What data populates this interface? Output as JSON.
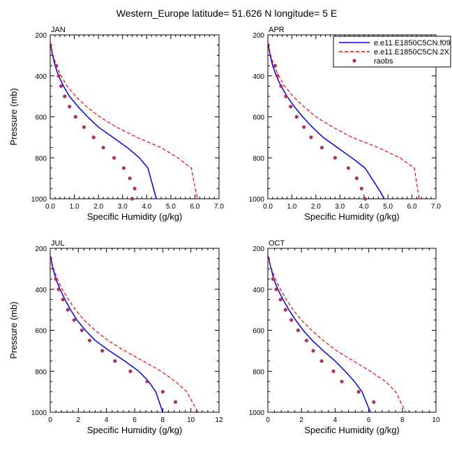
{
  "title": "Western_Europe  latitude= 51.626 N longitude= 5 E",
  "legend": {
    "placement": "top-right",
    "entries": [
      {
        "label": "e.e11.E1850C5CN.f09",
        "color": "#0000ff",
        "style": "solid"
      },
      {
        "label": "e.e11.E1850C5CN.2X",
        "color": "#ff0000",
        "style": "dashed"
      },
      {
        "label": "raobs",
        "color": "#b03060",
        "style": "marker"
      }
    ]
  },
  "chart_data": [
    {
      "type": "line",
      "panel": "JAN",
      "xlabel": "Specific Humidity (g/kg)",
      "ylabel": "Pressure (mb)",
      "xlim": [
        0,
        7
      ],
      "xticks": [
        0,
        1,
        2,
        3,
        4,
        5,
        6,
        7
      ],
      "xtick_labels": [
        "0.0",
        "1.0",
        "2.0",
        "3.0",
        "4.0",
        "5.0",
        "6.0",
        "7.0"
      ],
      "ylim": [
        200,
        1000
      ],
      "yreversed": true,
      "yticks": [
        200,
        400,
        600,
        800,
        1000
      ],
      "ytick_labels": [
        "200",
        "400",
        "600",
        "800",
        "1000"
      ],
      "grid": false,
      "series": [
        {
          "name": "e.e11.E1850C5CN.f09",
          "x": [
            0.02,
            0.05,
            0.1,
            0.2,
            0.35,
            0.55,
            0.8,
            1.15,
            1.55,
            2.0,
            2.6,
            3.2,
            3.7,
            4.05,
            4.4
          ],
          "y": [
            240,
            270,
            300,
            350,
            400,
            450,
            500,
            550,
            600,
            650,
            700,
            750,
            800,
            850,
            1000
          ]
        },
        {
          "name": "e.e11.E1850C5CN.2X",
          "x": [
            0.02,
            0.06,
            0.12,
            0.25,
            0.45,
            0.7,
            1.05,
            1.5,
            2.05,
            2.75,
            3.6,
            4.6,
            5.3,
            5.85,
            6.1
          ],
          "y": [
            240,
            270,
            300,
            350,
            400,
            450,
            500,
            550,
            600,
            650,
            700,
            750,
            800,
            850,
            1000
          ]
        },
        {
          "name": "raobs",
          "x": [
            0.25,
            0.35,
            0.45,
            0.6,
            0.8,
            1.05,
            1.4,
            1.8,
            2.2,
            2.65,
            3.05,
            3.3,
            3.5,
            3.4
          ],
          "y": [
            350,
            400,
            450,
            500,
            550,
            600,
            650,
            700,
            750,
            800,
            850,
            900,
            950,
            1000
          ]
        }
      ]
    },
    {
      "type": "line",
      "panel": "APR",
      "xlabel": "Specific Humidity (g/kg)",
      "ylabel": "",
      "xlim": [
        0,
        7
      ],
      "xticks": [
        0,
        1,
        2,
        3,
        4,
        5,
        6,
        7
      ],
      "xtick_labels": [
        "0.0",
        "1.0",
        "2.0",
        "3.0",
        "4.0",
        "5.0",
        "6.0",
        "7.0"
      ],
      "ylim": [
        200,
        1000
      ],
      "yreversed": true,
      "yticks": [
        200,
        400,
        600,
        800,
        1000
      ],
      "ytick_labels": [
        "200",
        "400",
        "600",
        "800",
        "1000"
      ],
      "grid": false,
      "series": [
        {
          "name": "e.e11.E1850C5CN.f09",
          "x": [
            0.02,
            0.05,
            0.1,
            0.2,
            0.35,
            0.55,
            0.8,
            1.1,
            1.45,
            1.85,
            2.3,
            2.9,
            3.5,
            4.05,
            4.6,
            4.85
          ],
          "y": [
            240,
            270,
            300,
            350,
            400,
            450,
            500,
            550,
            600,
            650,
            700,
            750,
            800,
            850,
            950,
            1000
          ]
        },
        {
          "name": "e.e11.E1850C5CN.2X",
          "x": [
            0.02,
            0.06,
            0.12,
            0.25,
            0.45,
            0.7,
            1.05,
            1.5,
            2.0,
            2.7,
            3.5,
            4.6,
            5.5,
            6.1,
            6.3
          ],
          "y": [
            240,
            270,
            300,
            350,
            400,
            450,
            500,
            550,
            600,
            650,
            700,
            750,
            800,
            850,
            1000
          ]
        },
        {
          "name": "raobs",
          "x": [
            0.3,
            0.4,
            0.55,
            0.75,
            0.95,
            1.2,
            1.5,
            1.8,
            2.25,
            2.8,
            3.35,
            3.7,
            3.9,
            4.05
          ],
          "y": [
            350,
            400,
            450,
            500,
            550,
            600,
            650,
            700,
            750,
            800,
            850,
            900,
            950,
            1000
          ]
        }
      ]
    },
    {
      "type": "line",
      "panel": "JUL",
      "xlabel": "Specific Humidity (g/kg)",
      "ylabel": "Pressure (mb)",
      "xlim": [
        0,
        12
      ],
      "xticks": [
        0,
        2,
        4,
        6,
        8,
        10,
        12
      ],
      "xtick_labels": [
        "0",
        "2",
        "4",
        "6",
        "8",
        "10",
        "12"
      ],
      "ylim": [
        200,
        1000
      ],
      "yreversed": true,
      "yticks": [
        200,
        400,
        600,
        800,
        1000
      ],
      "ytick_labels": [
        "200",
        "400",
        "600",
        "800",
        "1000"
      ],
      "grid": false,
      "series": [
        {
          "name": "e.e11.E1850C5CN.f09",
          "x": [
            0.05,
            0.1,
            0.2,
            0.4,
            0.7,
            1.05,
            1.45,
            1.9,
            2.5,
            3.2,
            4.2,
            5.3,
            6.3,
            7.0,
            7.5,
            8.0
          ],
          "y": [
            240,
            270,
            300,
            350,
            400,
            450,
            500,
            550,
            600,
            650,
            700,
            750,
            800,
            850,
            900,
            1000
          ]
        },
        {
          "name": "e.e11.E1850C5CN.2X",
          "x": [
            0.05,
            0.12,
            0.25,
            0.5,
            0.85,
            1.3,
            1.8,
            2.4,
            3.2,
            4.1,
            5.3,
            6.6,
            7.9,
            8.9,
            9.7,
            10.5
          ],
          "y": [
            240,
            270,
            300,
            350,
            400,
            450,
            500,
            550,
            600,
            650,
            700,
            750,
            800,
            850,
            900,
            1000
          ]
        },
        {
          "name": "raobs",
          "x": [
            0.4,
            0.6,
            0.9,
            1.25,
            1.7,
            2.25,
            2.8,
            3.7,
            4.6,
            5.7,
            6.9,
            8.0,
            8.9
          ],
          "y": [
            350,
            400,
            450,
            500,
            550,
            600,
            650,
            700,
            750,
            800,
            850,
            900,
            950
          ]
        }
      ]
    },
    {
      "type": "line",
      "panel": "OCT",
      "xlabel": "Specific Humidity (g/kg)",
      "ylabel": "",
      "xlim": [
        0,
        10
      ],
      "xticks": [
        0,
        2,
        4,
        6,
        8,
        10
      ],
      "xtick_labels": [
        "0",
        "2",
        "4",
        "6",
        "8",
        "10"
      ],
      "ylim": [
        200,
        1000
      ],
      "yreversed": true,
      "yticks": [
        200,
        400,
        600,
        800,
        1000
      ],
      "ytick_labels": [
        "200",
        "400",
        "600",
        "800",
        "1000"
      ],
      "grid": false,
      "series": [
        {
          "name": "e.e11.E1850C5CN.f09",
          "x": [
            0.05,
            0.1,
            0.2,
            0.35,
            0.6,
            0.9,
            1.25,
            1.65,
            2.1,
            2.65,
            3.3,
            4.0,
            4.6,
            5.15,
            5.6,
            6.1
          ],
          "y": [
            240,
            270,
            300,
            350,
            400,
            450,
            500,
            550,
            600,
            650,
            700,
            750,
            800,
            850,
            900,
            1000
          ]
        },
        {
          "name": "e.e11.E1850C5CN.2X",
          "x": [
            0.05,
            0.12,
            0.22,
            0.45,
            0.75,
            1.1,
            1.5,
            2.0,
            2.6,
            3.3,
            4.1,
            5.1,
            6.1,
            7.0,
            7.6,
            8.2
          ],
          "y": [
            240,
            270,
            300,
            350,
            400,
            450,
            500,
            550,
            600,
            650,
            700,
            750,
            800,
            850,
            900,
            1000
          ]
        },
        {
          "name": "raobs",
          "x": [
            0.3,
            0.5,
            0.75,
            1.05,
            1.4,
            1.8,
            2.3,
            2.7,
            3.2,
            3.9,
            4.4,
            5.4,
            6.3
          ],
          "y": [
            350,
            400,
            450,
            500,
            550,
            600,
            650,
            700,
            750,
            800,
            850,
            900,
            950
          ]
        }
      ]
    }
  ]
}
